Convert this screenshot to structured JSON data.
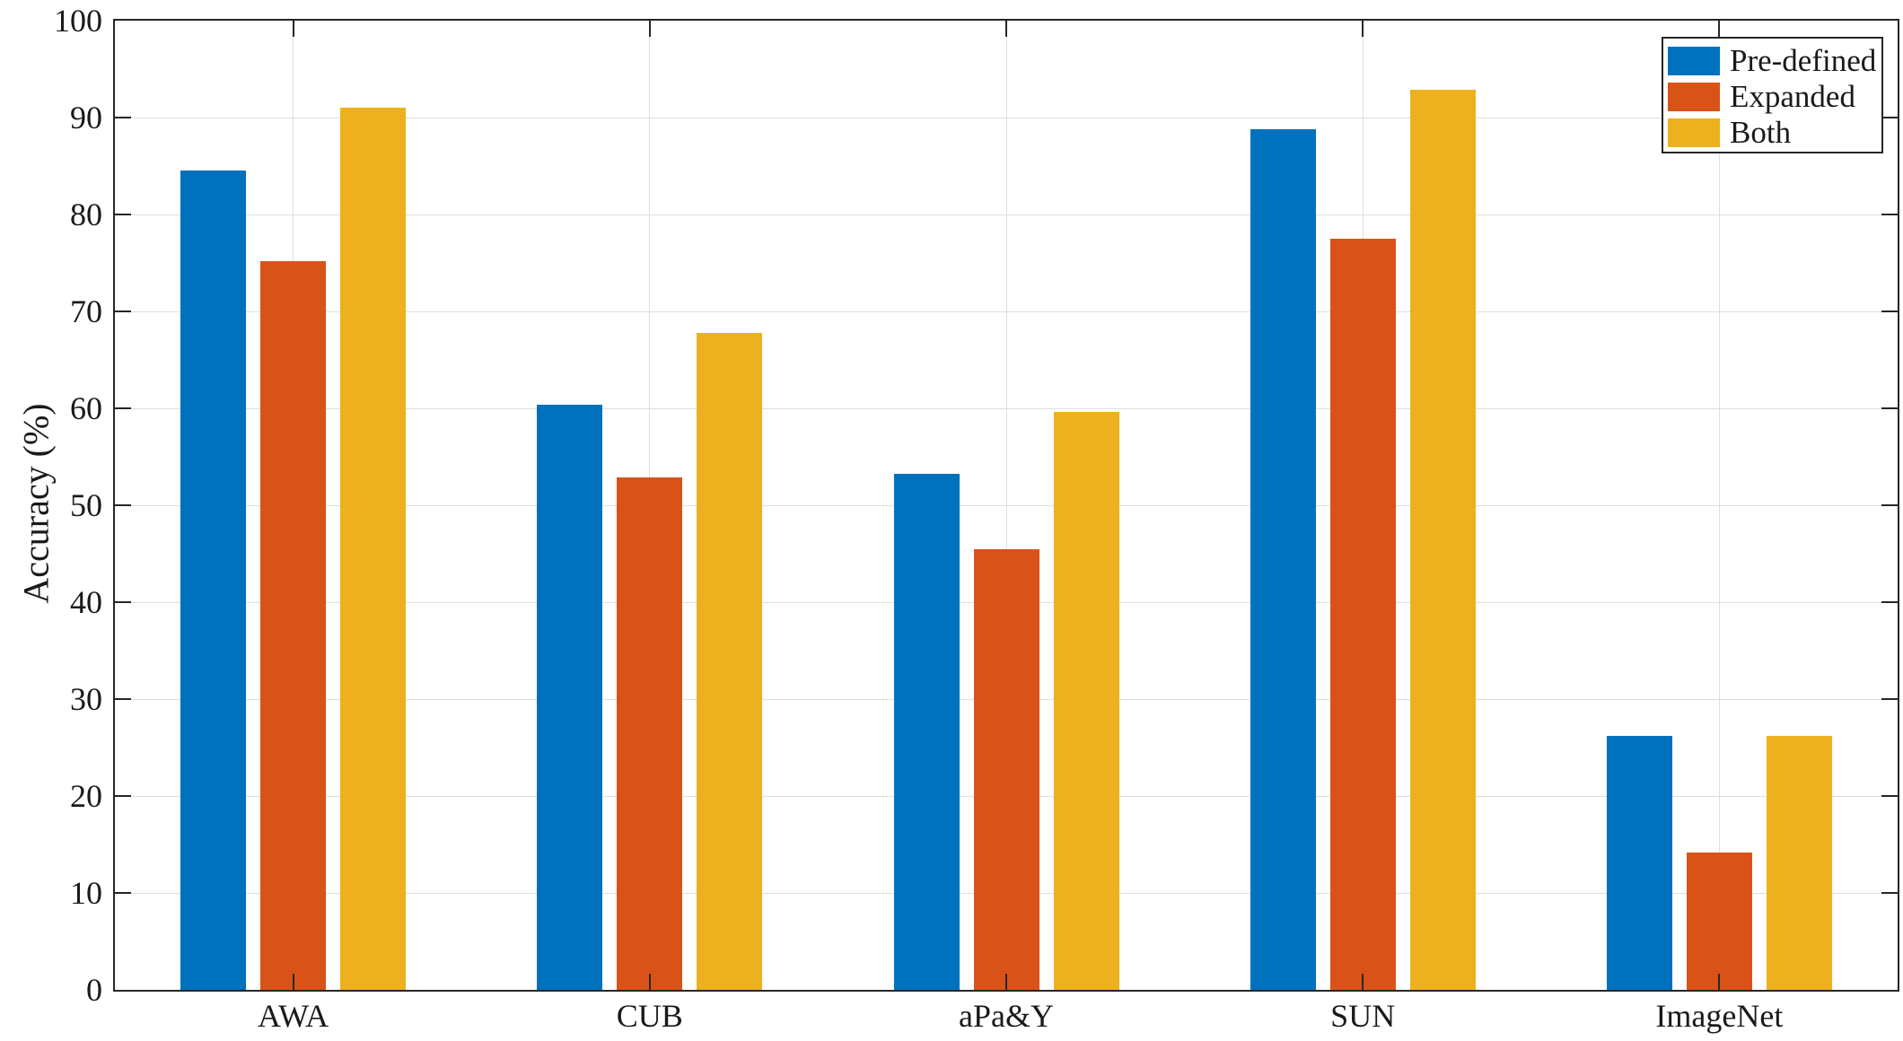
{
  "chart_data": {
    "type": "bar",
    "title": "",
    "xlabel": "",
    "ylabel": "Accuracy (%)",
    "ylim": [
      0,
      100
    ],
    "ytick_step": 10,
    "yticks": [
      0,
      10,
      20,
      30,
      40,
      50,
      60,
      70,
      80,
      90,
      100
    ],
    "categories": [
      "AWA",
      "CUB",
      "aPa&Y",
      "SUN",
      "ImageNet"
    ],
    "series": [
      {
        "name": "Pre-defined",
        "color": "#0072BD",
        "values": [
          84.5,
          60.4,
          53.2,
          88.8,
          26.2
        ]
      },
      {
        "name": "Expanded",
        "color": "#D95319",
        "values": [
          75.2,
          52.9,
          45.5,
          77.5,
          14.2
        ]
      },
      {
        "name": "Both",
        "color": "#EDB120",
        "values": [
          91.0,
          67.8,
          59.6,
          92.9,
          26.2
        ]
      }
    ],
    "legend_position": "top-right",
    "grid": true,
    "grid_color": "#DEDEDE",
    "axis_color": "#262626",
    "background_color": "#FFFFFF"
  }
}
